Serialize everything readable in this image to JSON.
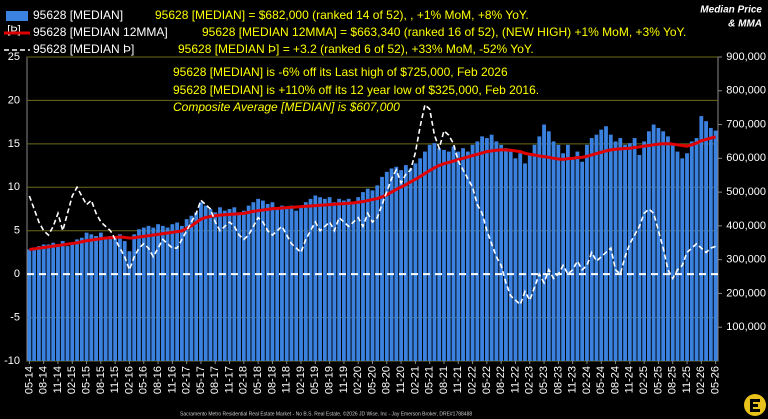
{
  "chart_data": {
    "type": "bar-line",
    "ylabel": "[Þ]",
    "y2label": [
      "Median Price",
      "& MMA"
    ],
    "footer": "Sacramento Metro Residential Real Estate Market - No B.S. Real Estate, ©2026 JD Wise, Inc - Jay Emerson Broker, DRE#1788488",
    "annotations": [
      "95628 [MEDIAN] = $682,000 (ranked 14 of 52), , +1% MoM, +8% YoY.",
      "95628 [MEDIAN 12MMA] = $663,340 (ranked 16 of 52), (NEW HIGH) +1% MoM, +3% YoY.",
      "95628 [MEDIAN Þ] = +3.2 (ranked 6 of 52), +33% MoM, -52% YoY.",
      "95628 [MEDIAN] is -6% off its Last high of $725,000, Feb 2026",
      "95628 [MEDIAN] is +110% off its 12 year low of $325,000, Feb 2016.",
      "Composite Average [MEDIAN] is $607,000"
    ],
    "ylim": [
      -10,
      25
    ],
    "yticks": [
      -10,
      -5,
      0,
      5,
      10,
      15,
      20,
      25
    ],
    "y2lim": [
      0,
      900000
    ],
    "y2ticks": [
      {
        "value": 100000,
        "label": "100,000"
      },
      {
        "value": 200000,
        "label": "200,000"
      },
      {
        "value": 300000,
        "label": "300,000"
      },
      {
        "value": 400000,
        "label": "400,000"
      },
      {
        "value": 500000,
        "label": "500,000"
      },
      {
        "value": 600000,
        "label": "600,000"
      },
      {
        "value": 700000,
        "label": "700,000"
      },
      {
        "value": 800000,
        "label": "800,000"
      },
      {
        "value": 900000,
        "label": "900,000"
      }
    ],
    "grid": true,
    "categories": [
      "05-14",
      null,
      null,
      "08-14",
      null,
      null,
      "11-14",
      null,
      null,
      "02-15",
      null,
      null,
      "05-15",
      null,
      null,
      "08-15",
      null,
      null,
      "11-15",
      null,
      null,
      "02-16",
      null,
      null,
      "05-16",
      null,
      null,
      "08-16",
      null,
      null,
      "11-16",
      null,
      null,
      "02-17",
      null,
      null,
      "05-17",
      null,
      null,
      "08-17",
      null,
      null,
      "11-17",
      null,
      null,
      "02-18",
      null,
      null,
      "05-18",
      null,
      null,
      "08-18",
      null,
      null,
      "11-18",
      null,
      null,
      "02-19",
      null,
      null,
      "05-19",
      null,
      null,
      "08-19",
      null,
      null,
      "11-19",
      null,
      null,
      "02-20",
      null,
      null,
      "05-20",
      null,
      null,
      "08-20",
      null,
      null,
      "11-20",
      null,
      null,
      "02-21",
      null,
      null,
      "05-21",
      null,
      null,
      "08-21",
      null,
      null,
      "11-21",
      null,
      null,
      "02-22",
      null,
      null,
      "05-22",
      null,
      null,
      "08-22",
      null,
      null,
      "11-22",
      null,
      null,
      "02-23",
      null,
      null,
      "05-23",
      null,
      null,
      "08-23",
      null,
      null,
      "11-23",
      null,
      null,
      "02-24",
      null,
      null,
      "05-24",
      null,
      null,
      "08-24",
      null,
      null,
      "11-24",
      null,
      null,
      "02-25",
      null,
      null,
      "05-25",
      null,
      null,
      "08-25",
      null,
      null,
      "11-25",
      null,
      null,
      "02-26",
      null,
      null,
      "05-26"
    ],
    "series": [
      {
        "name": "95628 [MEDIAN]",
        "kind": "bar",
        "axis": "y2",
        "color": "#3b82e0",
        "values": [
          330000,
          335000,
          340000,
          345000,
          345000,
          350000,
          345000,
          355000,
          340000,
          350000,
          360000,
          365000,
          380000,
          375000,
          370000,
          380000,
          365000,
          370000,
          365000,
          375000,
          355000,
          325000,
          375000,
          390000,
          395000,
          400000,
          395000,
          405000,
          400000,
          395000,
          405000,
          410000,
          400000,
          420000,
          430000,
          440000,
          470000,
          460000,
          450000,
          440000,
          455000,
          445000,
          450000,
          455000,
          440000,
          445000,
          460000,
          470000,
          480000,
          475000,
          465000,
          470000,
          455000,
          460000,
          450000,
          460000,
          445000,
          455000,
          470000,
          480000,
          490000,
          485000,
          480000,
          485000,
          470000,
          480000,
          475000,
          480000,
          470000,
          485000,
          500000,
          510000,
          505000,
          520000,
          545000,
          560000,
          570000,
          575000,
          565000,
          580000,
          570000,
          585000,
          600000,
          620000,
          640000,
          645000,
          630000,
          625000,
          620000,
          635000,
          620000,
          630000,
          620000,
          640000,
          650000,
          665000,
          660000,
          670000,
          650000,
          640000,
          630000,
          620000,
          600000,
          615000,
          585000,
          610000,
          640000,
          665000,
          700000,
          680000,
          650000,
          640000,
          615000,
          640000,
          600000,
          620000,
          590000,
          640000,
          660000,
          670000,
          685000,
          695000,
          670000,
          650000,
          660000,
          640000,
          645000,
          660000,
          610000,
          650000,
          680000,
          700000,
          690000,
          680000,
          665000,
          640000,
          620000,
          600000,
          615000,
          650000,
          660000,
          725000,
          710000,
          690000,
          682000
        ]
      },
      {
        "name": "95628 [MEDIAN 12MMA]",
        "kind": "line",
        "axis": "y2",
        "color": "#e00000",
        "values": [
          330000,
          332000,
          334000,
          336000,
          338000,
          340000,
          342000,
          344000,
          346000,
          348000,
          350000,
          353000,
          356000,
          358000,
          360000,
          362000,
          364000,
          365000,
          366000,
          367000,
          366000,
          364000,
          365000,
          367000,
          369000,
          371000,
          373000,
          375000,
          377000,
          379000,
          381000,
          383000,
          385000,
          393000,
          400000,
          410000,
          420000,
          425000,
          428000,
          430000,
          432000,
          433000,
          434000,
          435000,
          436000,
          437000,
          440000,
          443000,
          445000,
          447000,
          449000,
          451000,
          452000,
          453000,
          454000,
          455000,
          456000,
          457000,
          458000,
          459000,
          460000,
          461000,
          462000,
          463000,
          464000,
          465000,
          466000,
          467000,
          468000,
          470000,
          472000,
          475000,
          478000,
          481000,
          486000,
          492000,
          500000,
          508000,
          515000,
          522000,
          530000,
          538000,
          546000,
          555000,
          564000,
          572000,
          579000,
          584000,
          588000,
          592000,
          596000,
          600000,
          604000,
          608000,
          612000,
          616000,
          620000,
          622000,
          624000,
          625000,
          625000,
          624000,
          622000,
          620000,
          615000,
          612000,
          610000,
          607000,
          605000,
          603000,
          600000,
          598000,
          597000,
          599000,
          600000,
          602000,
          603000,
          606000,
          610000,
          614000,
          618000,
          622000,
          625000,
          627000,
          628000,
          629000,
          630000,
          632000,
          634000,
          636000,
          638000,
          640000,
          642000,
          643000,
          643000,
          642000,
          640000,
          638000,
          636000,
          640000,
          645000,
          652000,
          656000,
          660000,
          663340
        ]
      },
      {
        "name": "95628 [MEDIAN Þ]",
        "kind": "dashed",
        "axis": "y",
        "color": "#ffffff",
        "values": [
          9,
          7.5,
          6,
          5,
          4.5,
          5.5,
          7,
          5,
          7,
          9,
          10,
          9,
          8,
          8.5,
          7,
          6,
          5.5,
          5,
          4,
          3,
          2,
          0.5,
          2,
          3,
          3.5,
          3,
          2,
          3,
          4,
          3.5,
          3,
          3,
          4,
          5,
          6,
          7,
          8.5,
          8,
          7.5,
          6,
          5,
          5.5,
          6,
          5.5,
          4.5,
          4,
          4.5,
          5.5,
          6.5,
          6,
          5,
          4.5,
          5,
          5.5,
          4.5,
          3.5,
          3,
          2.5,
          4,
          5,
          6,
          5,
          5.5,
          6,
          5,
          6.5,
          6,
          5.5,
          6,
          6.5,
          5.5,
          7,
          6,
          6.5,
          8,
          9.5,
          11,
          12,
          10.5,
          11.5,
          12,
          14,
          17,
          19.5,
          19,
          16,
          14.5,
          16.5,
          16,
          15,
          13,
          12,
          11,
          10,
          8,
          7,
          5,
          3.5,
          2,
          1,
          -1,
          -2.5,
          -3,
          -3.5,
          -2,
          -3,
          -1.5,
          0,
          -1,
          0.5,
          -0.5,
          0,
          1,
          0,
          0.5,
          1.5,
          0.5,
          1,
          2.5,
          1.5,
          2,
          2.5,
          3,
          0.5,
          0,
          2,
          3.5,
          4.5,
          5.5,
          7,
          7.5,
          7,
          5,
          3,
          0.5,
          -0.5,
          0.5,
          1,
          2.5,
          3,
          3.5,
          3,
          2.5,
          3,
          3.2
        ]
      }
    ]
  }
}
